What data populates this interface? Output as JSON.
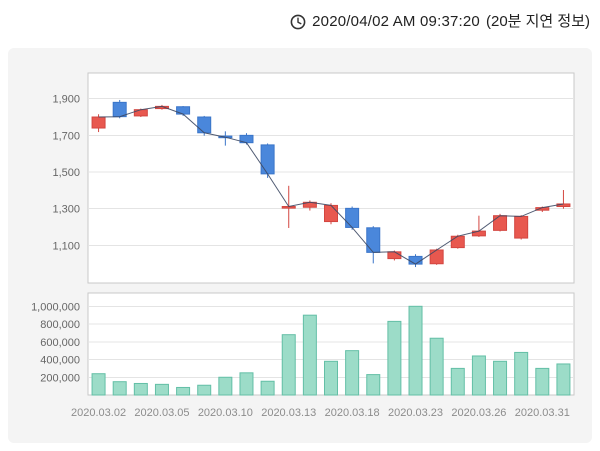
{
  "header": {
    "timestamp": "2020/04/02 AM 09:37:20",
    "delay_note": "(20분 지연 정보)",
    "clock_icon": "clock-icon"
  },
  "chart_data": {
    "type": "candlestick",
    "title": "",
    "legend": [],
    "grid": true,
    "price_axis": {
      "tick_labels": [
        "1,900",
        "1,700",
        "1,500",
        "1,300",
        "1,100"
      ],
      "tick_values": [
        1900,
        1700,
        1500,
        1300,
        1100
      ],
      "min": 895,
      "max": 2040
    },
    "volume_axis": {
      "tick_labels": [
        "1,000,000",
        "800,000",
        "600,000",
        "400,000",
        "200,000"
      ],
      "tick_values": [
        1000000,
        800000,
        600000,
        400000,
        200000
      ],
      "min": 0,
      "max": 1150000
    },
    "x_tick_labels": [
      "2020.03.02",
      "2020.03.05",
      "2020.03.10",
      "2020.03.13",
      "2020.03.18",
      "2020.03.23",
      "2020.03.26",
      "2020.03.31"
    ],
    "x_tick_indices": [
      0,
      3,
      6,
      9,
      12,
      15,
      18,
      21
    ],
    "candles": [
      {
        "date": "2020.03.02",
        "open": 1740,
        "high": 1815,
        "low": 1718,
        "close": 1800,
        "volume": 240000
      },
      {
        "date": "2020.03.03",
        "open": 1880,
        "high": 1893,
        "low": 1793,
        "close": 1802,
        "volume": 150000
      },
      {
        "date": "2020.03.04",
        "open": 1806,
        "high": 1846,
        "low": 1800,
        "close": 1840,
        "volume": 130000
      },
      {
        "date": "2020.03.05",
        "open": 1846,
        "high": 1866,
        "low": 1840,
        "close": 1858,
        "volume": 120000
      },
      {
        "date": "2020.03.06",
        "open": 1856,
        "high": 1860,
        "low": 1806,
        "close": 1816,
        "volume": 85000
      },
      {
        "date": "2020.03.09",
        "open": 1800,
        "high": 1806,
        "low": 1698,
        "close": 1714,
        "volume": 110000
      },
      {
        "date": "2020.03.10",
        "open": 1696,
        "high": 1722,
        "low": 1644,
        "close": 1690,
        "volume": 200000
      },
      {
        "date": "2020.03.11",
        "open": 1700,
        "high": 1712,
        "low": 1650,
        "close": 1660,
        "volume": 250000
      },
      {
        "date": "2020.03.12",
        "open": 1648,
        "high": 1656,
        "low": 1468,
        "close": 1490,
        "volume": 155000
      },
      {
        "date": "2020.03.13",
        "open": 1305,
        "high": 1425,
        "low": 1195,
        "close": 1312,
        "volume": 680000
      },
      {
        "date": "2020.03.16",
        "open": 1308,
        "high": 1345,
        "low": 1290,
        "close": 1335,
        "volume": 900000
      },
      {
        "date": "2020.03.17",
        "open": 1230,
        "high": 1330,
        "low": 1215,
        "close": 1318,
        "volume": 380000
      },
      {
        "date": "2020.03.18",
        "open": 1302,
        "high": 1312,
        "low": 1185,
        "close": 1198,
        "volume": 500000
      },
      {
        "date": "2020.03.19",
        "open": 1196,
        "high": 1205,
        "low": 1002,
        "close": 1062,
        "volume": 230000
      },
      {
        "date": "2020.03.20",
        "open": 1028,
        "high": 1072,
        "low": 1018,
        "close": 1065,
        "volume": 830000
      },
      {
        "date": "2020.03.23",
        "open": 1040,
        "high": 1052,
        "low": 982,
        "close": 998,
        "volume": 1000000
      },
      {
        "date": "2020.03.24",
        "open": 1000,
        "high": 1082,
        "low": 994,
        "close": 1075,
        "volume": 640000
      },
      {
        "date": "2020.03.25",
        "open": 1088,
        "high": 1158,
        "low": 1082,
        "close": 1150,
        "volume": 300000
      },
      {
        "date": "2020.03.26",
        "open": 1152,
        "high": 1262,
        "low": 1146,
        "close": 1178,
        "volume": 440000
      },
      {
        "date": "2020.03.27",
        "open": 1182,
        "high": 1272,
        "low": 1176,
        "close": 1262,
        "volume": 380000
      },
      {
        "date": "2020.03.30",
        "open": 1140,
        "high": 1265,
        "low": 1132,
        "close": 1258,
        "volume": 480000
      },
      {
        "date": "2020.03.31",
        "open": 1292,
        "high": 1312,
        "low": 1282,
        "close": 1306,
        "volume": 300000
      },
      {
        "date": "2020.04.01",
        "open": 1312,
        "high": 1402,
        "low": 1300,
        "close": 1326,
        "volume": 350000
      }
    ],
    "colors": {
      "up": "#e8584f",
      "up_stroke": "#d34640",
      "down": "#4a87db",
      "down_stroke": "#3a75c9",
      "volume_fill": "#9cdcc8",
      "volume_stroke": "#63bfa6",
      "close_line": "#3d4964",
      "plot_bg": "#ffffff",
      "plot_border": "#c9c9c9",
      "gridline": "#e4e4e4",
      "axis_text": "#666666",
      "x_label_text": "#8c8c8c",
      "panel_bg": "#f4f4f4"
    }
  }
}
